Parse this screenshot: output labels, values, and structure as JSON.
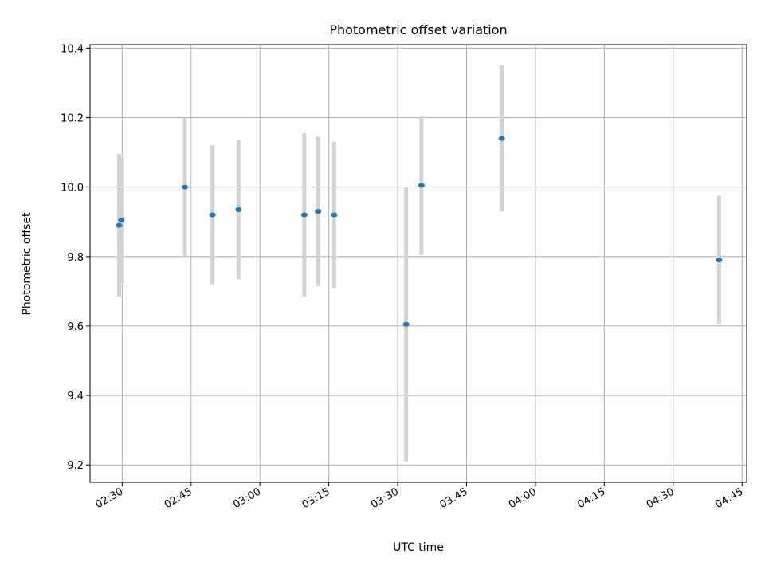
{
  "chart_data": {
    "type": "scatter",
    "title": "Photometric offset variation",
    "xlabel": "UTC time",
    "ylabel": "Photometric offset",
    "xlim": [
      "02:23",
      "04:46"
    ],
    "ylim": [
      9.15,
      10.41
    ],
    "x_ticks": [
      "02:30",
      "02:45",
      "03:00",
      "03:15",
      "03:30",
      "03:45",
      "04:00",
      "04:15",
      "04:30",
      "04:45"
    ],
    "y_ticks": [
      9.2,
      9.4,
      9.6,
      9.8,
      10.0,
      10.2,
      10.4
    ],
    "grid": true,
    "colors": {
      "point": "#1f77b4",
      "errorbar": "#d3d3d3"
    },
    "series": [
      {
        "points": [
          {
            "t": "02:29:20",
            "y": 9.89,
            "err": 0.205
          },
          {
            "t": "02:29:50",
            "y": 9.905,
            "err": 0.18
          },
          {
            "t": "02:43:40",
            "y": 10.0,
            "err": 0.2
          },
          {
            "t": "02:49:40",
            "y": 9.92,
            "err": 0.2
          },
          {
            "t": "02:55:20",
            "y": 9.935,
            "err": 0.2
          },
          {
            "t": "03:09:40",
            "y": 9.92,
            "err": 0.235
          },
          {
            "t": "03:12:40",
            "y": 9.93,
            "err": 0.215
          },
          {
            "t": "03:16:10",
            "y": 9.92,
            "err": 0.21
          },
          {
            "t": "03:31:50",
            "y": 9.605,
            "err": 0.395
          },
          {
            "t": "03:35:10",
            "y": 10.005,
            "err": 0.2
          },
          {
            "t": "03:52:40",
            "y": 10.14,
            "err": 0.21
          },
          {
            "t": "04:40:00",
            "y": 9.79,
            "err": 0.185
          }
        ]
      }
    ]
  }
}
